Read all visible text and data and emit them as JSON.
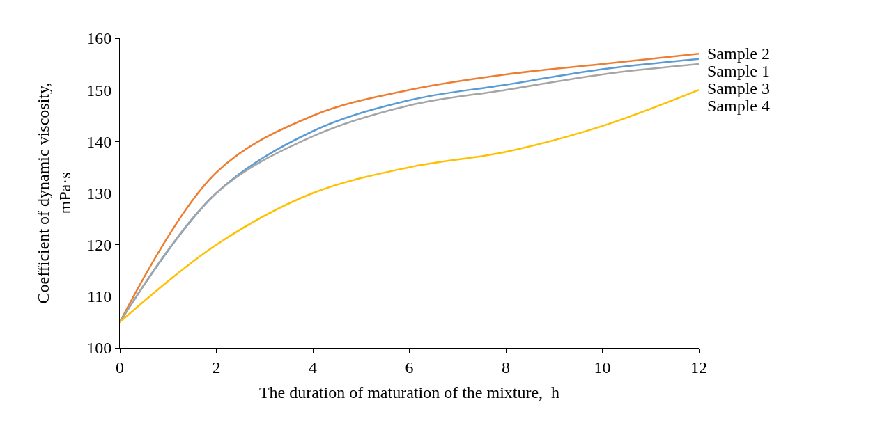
{
  "chart_data": {
    "type": "line",
    "xlabel": "The duration of maturation of the mixture,  h",
    "ylabel": "Coefficient of dynamic viscosity,\nmPa·s",
    "x": [
      0,
      2,
      4,
      6,
      8,
      10,
      12
    ],
    "series": [
      {
        "name": "Sample 1",
        "color": "#5b9bd5",
        "values": [
          105,
          130,
          142,
          148,
          151,
          154,
          156
        ]
      },
      {
        "name": "Sample 2",
        "color": "#ed7d31",
        "values": [
          105,
          134,
          145,
          150,
          153,
          155,
          157
        ]
      },
      {
        "name": "Sample 3",
        "color": "#a5a5a5",
        "values": [
          105,
          130,
          141,
          147,
          150,
          153,
          155
        ]
      },
      {
        "name": "Sample 4",
        "color": "#ffc000",
        "values": [
          105,
          120,
          130,
          135,
          138,
          143,
          150
        ]
      }
    ],
    "xlim": [
      0,
      12
    ],
    "xticks": [
      0,
      2,
      4,
      6,
      8,
      10,
      12
    ],
    "ylim": [
      100,
      160
    ],
    "yticks": [
      100,
      110,
      120,
      130,
      140,
      150,
      160
    ],
    "legend": false,
    "marker": "none",
    "line_style": "solid"
  }
}
